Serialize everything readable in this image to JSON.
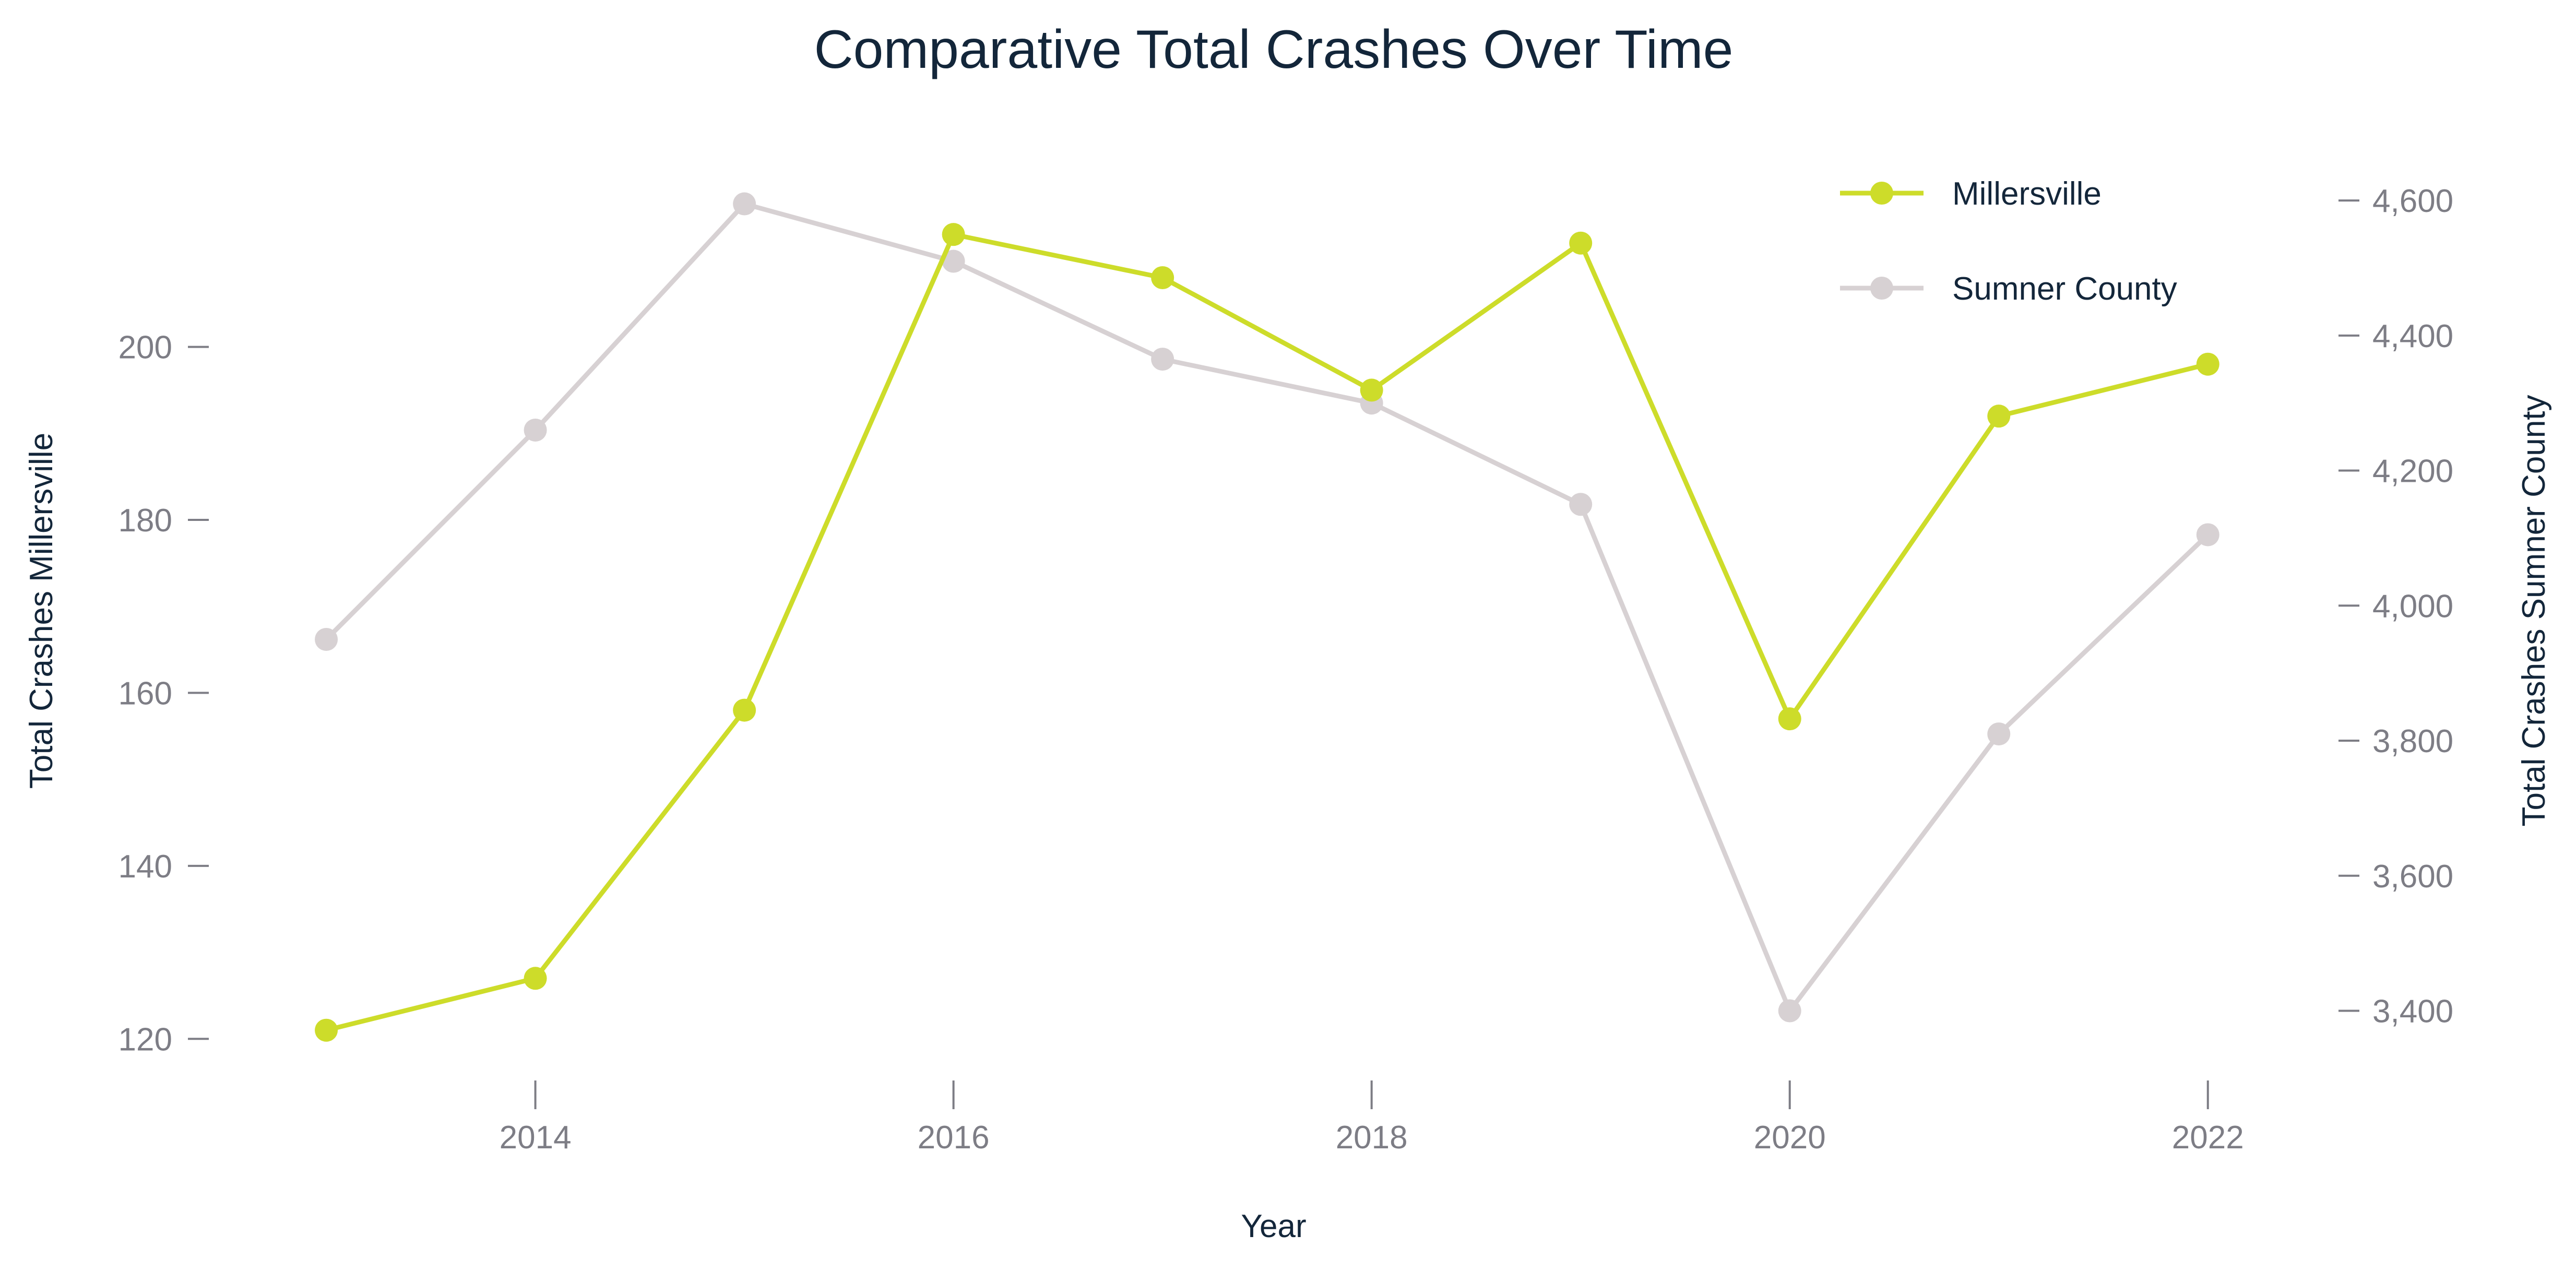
{
  "chart_data": {
    "type": "line",
    "title": "Comparative Total Crashes Over Time",
    "xlabel": "Year",
    "ylabel_left": "Total Crashes Millersville",
    "ylabel_right": "Total Crashes Sumner County",
    "x": [
      2013,
      2014,
      2015,
      2016,
      2017,
      2018,
      2019,
      2020,
      2021,
      2022
    ],
    "x_ticks": [
      2014,
      2016,
      2018,
      2020,
      2022
    ],
    "x_tick_labels": [
      "2014",
      "2016",
      "2018",
      "2020",
      "2022"
    ],
    "xlim": [
      2012.85,
      2022.45
    ],
    "ylim_left": [
      117,
      222
    ],
    "ylim_right": [
      3320,
      4665
    ],
    "y_ticks_left": [
      120,
      140,
      160,
      180,
      200
    ],
    "y_tick_labels_left": [
      "120",
      "140",
      "160",
      "180",
      "200"
    ],
    "y_ticks_right": [
      3400,
      3600,
      3800,
      4000,
      4200,
      4400,
      4600
    ],
    "y_tick_labels_right": [
      "3,400",
      "3,600",
      "3,800",
      "4,000",
      "4,200",
      "4,400",
      "4,600"
    ],
    "grid": false,
    "legend_position": "top-right",
    "series": [
      {
        "name": "Millersville",
        "axis": "left",
        "color": "#cddc2a",
        "values": [
          121,
          127,
          158,
          213,
          208,
          195,
          212,
          157,
          192,
          198
        ]
      },
      {
        "name": "Sumner County",
        "axis": "right",
        "color": "#d7d1d3",
        "values": [
          3950,
          4260,
          4595,
          4510,
          4365,
          4300,
          4150,
          3400,
          3810,
          4105
        ]
      }
    ]
  }
}
